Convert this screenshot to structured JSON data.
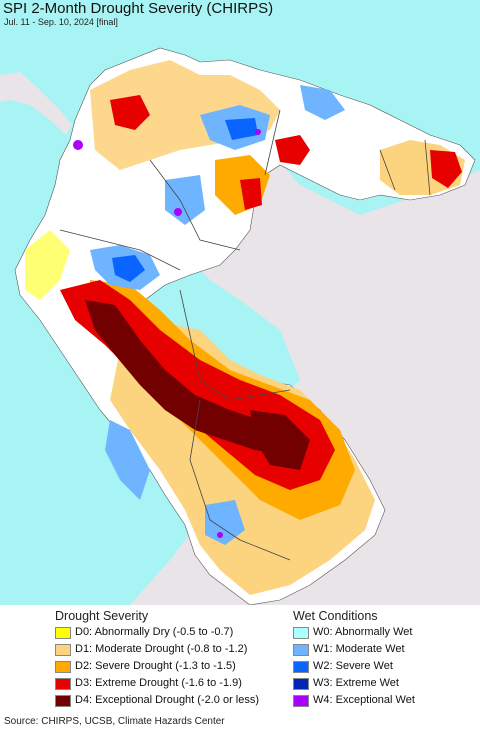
{
  "header": {
    "title": "SPI 2-Month Drought Severity (CHIRPS)",
    "subtitle": "Jul. 11 - Sep. 10, 2024 [final]"
  },
  "legend": {
    "drought_heading": "Drought Severity",
    "wet_heading": "Wet Conditions",
    "drought_items": [
      {
        "label": "D0: Abnormally Dry (-0.5 to -0.7)",
        "color": "#FFFF00"
      },
      {
        "label": "D1: Moderate Drought (-0.8 to -1.2)",
        "color": "#FCD37F"
      },
      {
        "label": "D2: Severe Drought (-1.3 to -1.5)",
        "color": "#FFAA00"
      },
      {
        "label": "D3: Extreme Drought (-1.6 to -1.9)",
        "color": "#E60000"
      },
      {
        "label": "D4: Exceptional Drought (-2.0 or less)",
        "color": "#730000"
      }
    ],
    "wet_items": [
      {
        "label": "W0: Abnormally Wet",
        "color": "#AAFFFF"
      },
      {
        "label": "W1: Moderate Wet",
        "color": "#6EB4FF"
      },
      {
        "label": "W2: Severe Wet",
        "color": "#0A64FF"
      },
      {
        "label": "W3: Extreme Wet",
        "color": "#0028B4"
      },
      {
        "label": "W4: Exceptional Wet",
        "color": "#AA00FF"
      }
    ]
  },
  "map": {
    "ocean_color": "#A8F4F4",
    "outside_land_color": "#E8E4E8"
  },
  "source": "Source: CHIRPS, UCSB, Climate Hazards Center"
}
